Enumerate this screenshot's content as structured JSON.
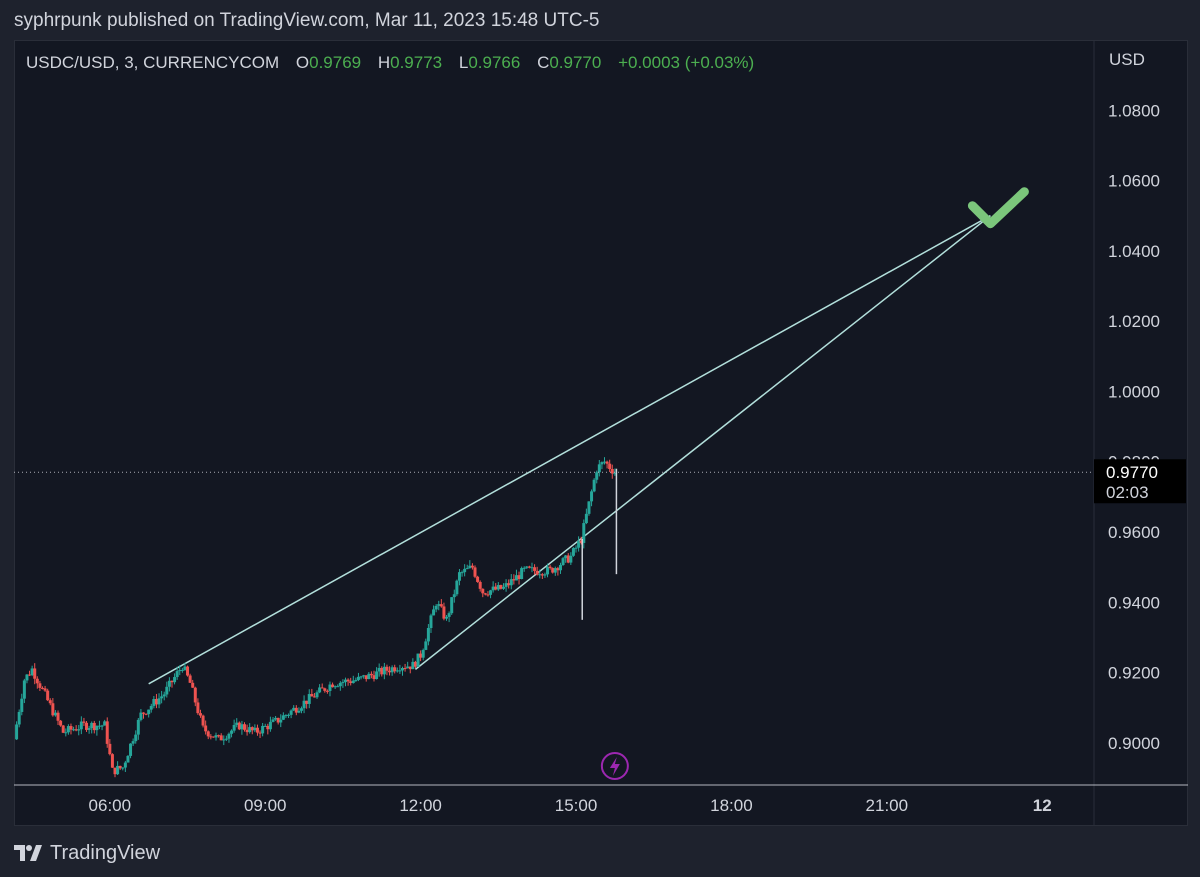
{
  "header": {
    "publisher_line": "syphrpunk published on TradingView.com, Mar 11, 2023 15:48 UTC-5"
  },
  "legend": {
    "symbol": "USDC/USD, 3, CURRENCYCOM",
    "open_label": "O",
    "open": "0.9769",
    "high_label": "H",
    "high": "0.9773",
    "low_label": "L",
    "low": "0.9766",
    "close_label": "C",
    "close": "0.9770",
    "change": "+0.0003 (+0.03%)"
  },
  "price_axis": {
    "currency": "USD"
  },
  "last_price": {
    "value": "0.9770",
    "countdown": "02:03"
  },
  "footer": {
    "brand": "TradingView"
  },
  "colors": {
    "up": "#26a69a",
    "down": "#ef5350",
    "trendline": "#b2dfdb",
    "check": "#7bc67b",
    "event_icon": "#9c27b0",
    "background": "#131722"
  },
  "icons": {
    "event": "lightning-icon",
    "annotation": "checkmark-icon",
    "logo": "tradingview-logo-icon"
  },
  "chart_data": {
    "type": "candlestick",
    "title": "USDC/USD, 3, CURRENCYCOM",
    "ylim": [
      0.888,
      1.1
    ],
    "xlim": [
      4.15,
      25.0
    ],
    "y_ticks": [
      "0.9000",
      "0.9200",
      "0.9400",
      "0.9600",
      "0.9800",
      "1.0000",
      "1.0200",
      "1.0400",
      "1.0600",
      "1.0800"
    ],
    "x_ticks": [
      {
        "value": 6,
        "label": "06:00"
      },
      {
        "value": 9,
        "label": "09:00"
      },
      {
        "value": 12,
        "label": "12:00"
      },
      {
        "value": 15,
        "label": "15:00"
      },
      {
        "value": 18,
        "label": "18:00"
      },
      {
        "value": 21,
        "label": "21:00"
      },
      {
        "value": 24,
        "label": "12",
        "bold": true
      }
    ],
    "series_anchors": [
      {
        "hour": 4.15,
        "price": 0.901
      },
      {
        "hour": 4.35,
        "price": 0.918
      },
      {
        "hour": 4.5,
        "price": 0.921
      },
      {
        "hour": 4.8,
        "price": 0.912
      },
      {
        "hour": 5.1,
        "price": 0.903
      },
      {
        "hour": 5.5,
        "price": 0.905
      },
      {
        "hour": 5.9,
        "price": 0.905
      },
      {
        "hour": 6.05,
        "price": 0.892
      },
      {
        "hour": 6.25,
        "price": 0.893
      },
      {
        "hour": 6.6,
        "price": 0.908
      },
      {
        "hour": 7.05,
        "price": 0.914
      },
      {
        "hour": 7.4,
        "price": 0.922
      },
      {
        "hour": 7.55,
        "price": 0.917
      },
      {
        "hour": 7.8,
        "price": 0.904
      },
      {
        "hour": 8.1,
        "price": 0.901
      },
      {
        "hour": 8.5,
        "price": 0.905
      },
      {
        "hour": 8.8,
        "price": 0.903
      },
      {
        "hour": 9.2,
        "price": 0.906
      },
      {
        "hour": 9.8,
        "price": 0.912
      },
      {
        "hour": 10.3,
        "price": 0.917
      },
      {
        "hour": 10.8,
        "price": 0.918
      },
      {
        "hour": 11.2,
        "price": 0.92
      },
      {
        "hour": 11.6,
        "price": 0.922
      },
      {
        "hour": 11.85,
        "price": 0.922
      },
      {
        "hour": 12.0,
        "price": 0.925
      },
      {
        "hour": 12.3,
        "price": 0.94
      },
      {
        "hour": 12.5,
        "price": 0.935
      },
      {
        "hour": 12.75,
        "price": 0.948
      },
      {
        "hour": 13.0,
        "price": 0.95
      },
      {
        "hour": 13.2,
        "price": 0.943
      },
      {
        "hour": 13.6,
        "price": 0.944
      },
      {
        "hour": 14.0,
        "price": 0.949
      },
      {
        "hour": 14.5,
        "price": 0.949
      },
      {
        "hour": 14.9,
        "price": 0.953
      },
      {
        "hour": 15.1,
        "price": 0.958
      },
      {
        "hour": 15.4,
        "price": 0.978
      },
      {
        "hour": 15.55,
        "price": 0.98
      },
      {
        "hour": 15.75,
        "price": 0.977
      }
    ],
    "spikes": [
      {
        "hour": 15.12,
        "high": 0.958,
        "low": 0.935
      },
      {
        "hour": 15.78,
        "high": 0.978,
        "low": 0.948
      }
    ],
    "trendlines": [
      {
        "from": {
          "hour": 6.75,
          "price": 0.9168
        },
        "to": {
          "hour": 23.0,
          "price": 1.05
        }
      },
      {
        "from": {
          "hour": 11.9,
          "price": 0.9209
        },
        "to": {
          "hour": 23.0,
          "price": 1.05
        }
      }
    ],
    "last_price": 0.977,
    "event_marker_hour": 15.75
  }
}
